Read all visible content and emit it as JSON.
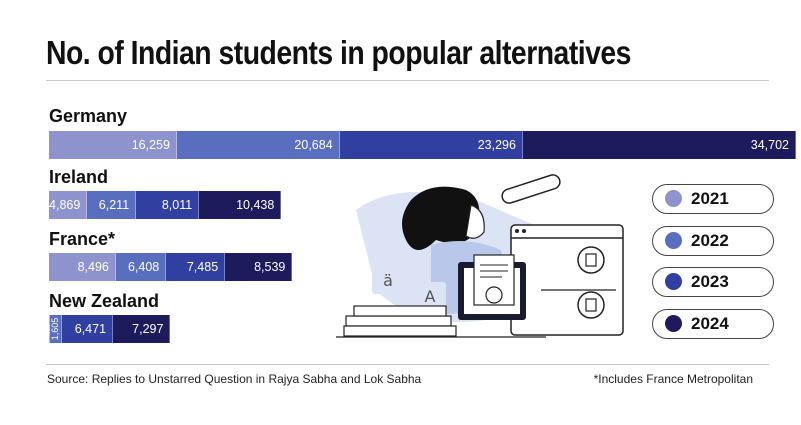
{
  "title": "No. of Indian students in popular alternatives",
  "source": "Source: Replies to Unstarred Question in Rajya Sabha and Lok Sabha",
  "footnote": "*Includes France Metropolitan",
  "colors": {
    "2021": "#8e93cd",
    "2022": "#5a6ec0",
    "2023": "#3140a0",
    "2024": "#1e1b5c"
  },
  "legend": [
    "2021",
    "2022",
    "2023",
    "2024"
  ],
  "chart_data": {
    "type": "bar",
    "stacked": true,
    "orientation": "horizontal",
    "title": "No. of Indian students in popular alternatives",
    "categories": [
      "Germany",
      "Ireland",
      "France*",
      "New Zealand"
    ],
    "series": [
      {
        "name": "2021",
        "values": [
          16259,
          4869,
          8496,
          64
        ]
      },
      {
        "name": "2022",
        "values": [
          20684,
          6211,
          6408,
          1605
        ]
      },
      {
        "name": "2023",
        "values": [
          23296,
          8011,
          7485,
          6471
        ]
      },
      {
        "name": "2024",
        "values": [
          34702,
          10438,
          8539,
          7297
        ]
      }
    ],
    "legend_position": "right",
    "grid": false
  }
}
